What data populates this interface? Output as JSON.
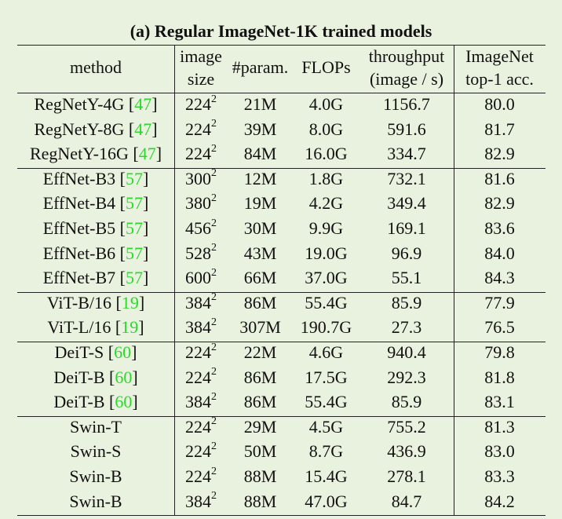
{
  "title": "(a) Regular ImageNet-1K trained models",
  "header": [
    [
      "method"
    ],
    [
      "image",
      "size"
    ],
    [
      "#param."
    ],
    [
      "FLOPs"
    ],
    [
      "throughput",
      "(image / s)"
    ],
    [
      "ImageNet",
      "top-1 acc."
    ]
  ],
  "cite_brackets": [
    "[",
    "]"
  ],
  "groups": [
    [
      {
        "method": "RegNetY-4G",
        "cite": "47",
        "size": "224",
        "size_exp": "2",
        "params": "21M",
        "flops": "4.0G",
        "throughput": "1156.7",
        "acc": "80.0"
      },
      {
        "method": "RegNetY-8G",
        "cite": "47",
        "size": "224",
        "size_exp": "2",
        "params": "39M",
        "flops": "8.0G",
        "throughput": "591.6",
        "acc": "81.7"
      },
      {
        "method": "RegNetY-16G",
        "cite": "47",
        "size": "224",
        "size_exp": "2",
        "params": "84M",
        "flops": "16.0G",
        "throughput": "334.7",
        "acc": "82.9"
      }
    ],
    [
      {
        "method": "EffNet-B3",
        "cite": "57",
        "size": "300",
        "size_exp": "2",
        "params": "12M",
        "flops": "1.8G",
        "throughput": "732.1",
        "acc": "81.6"
      },
      {
        "method": "EffNet-B4",
        "cite": "57",
        "size": "380",
        "size_exp": "2",
        "params": "19M",
        "flops": "4.2G",
        "throughput": "349.4",
        "acc": "82.9"
      },
      {
        "method": "EffNet-B5",
        "cite": "57",
        "size": "456",
        "size_exp": "2",
        "params": "30M",
        "flops": "9.9G",
        "throughput": "169.1",
        "acc": "83.6"
      },
      {
        "method": "EffNet-B6",
        "cite": "57",
        "size": "528",
        "size_exp": "2",
        "params": "43M",
        "flops": "19.0G",
        "throughput": "96.9",
        "acc": "84.0"
      },
      {
        "method": "EffNet-B7",
        "cite": "57",
        "size": "600",
        "size_exp": "2",
        "params": "66M",
        "flops": "37.0G",
        "throughput": "55.1",
        "acc": "84.3"
      }
    ],
    [
      {
        "method": "ViT-B/16",
        "cite": "19",
        "size": "384",
        "size_exp": "2",
        "params": "86M",
        "flops": "55.4G",
        "throughput": "85.9",
        "acc": "77.9"
      },
      {
        "method": "ViT-L/16",
        "cite": "19",
        "size": "384",
        "size_exp": "2",
        "params": "307M",
        "flops": "190.7G",
        "throughput": "27.3",
        "acc": "76.5"
      }
    ],
    [
      {
        "method": "DeiT-S",
        "cite": "60",
        "size": "224",
        "size_exp": "2",
        "params": "22M",
        "flops": "4.6G",
        "throughput": "940.4",
        "acc": "79.8"
      },
      {
        "method": "DeiT-B",
        "cite": "60",
        "size": "224",
        "size_exp": "2",
        "params": "86M",
        "flops": "17.5G",
        "throughput": "292.3",
        "acc": "81.8"
      },
      {
        "method": "DeiT-B",
        "cite": "60",
        "size": "384",
        "size_exp": "2",
        "params": "86M",
        "flops": "55.4G",
        "throughput": "85.9",
        "acc": "83.1"
      }
    ],
    [
      {
        "method": "Swin-T",
        "size": "224",
        "size_exp": "2",
        "params": "29M",
        "flops": "4.5G",
        "throughput": "755.2",
        "acc": "81.3"
      },
      {
        "method": "Swin-S",
        "size": "224",
        "size_exp": "2",
        "params": "50M",
        "flops": "8.7G",
        "throughput": "436.9",
        "acc": "83.0"
      },
      {
        "method": "Swin-B",
        "size": "224",
        "size_exp": "2",
        "params": "88M",
        "flops": "15.4G",
        "throughput": "278.1",
        "acc": "83.3"
      },
      {
        "method": "Swin-B",
        "size": "384",
        "size_exp": "2",
        "params": "88M",
        "flops": "47.0G",
        "throughput": "84.7",
        "acc": "84.2"
      }
    ]
  ]
}
